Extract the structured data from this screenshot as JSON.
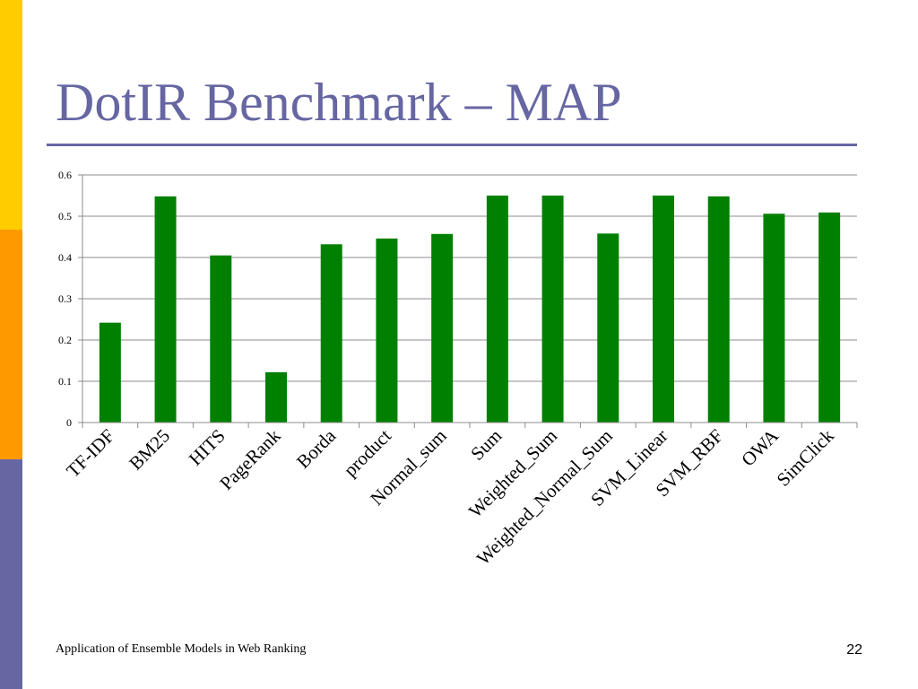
{
  "slide": {
    "title": "DotIR Benchmark – MAP",
    "footer": "Application of Ensemble Models in Web Ranking",
    "page_number": "22"
  },
  "colors": {
    "accent": "#6666A3",
    "bar": "#008000",
    "strip_top": "#FFCC00",
    "strip_mid": "#FF9900",
    "strip_bottom": "#6666A3"
  },
  "chart_data": {
    "type": "bar",
    "title": "",
    "xlabel": "",
    "ylabel": "",
    "categories": [
      "TF-IDF",
      "BM25",
      "HITS",
      "PageRank",
      "Borda",
      "product",
      "Normal_sum",
      "Sum",
      "Weighted_Sum",
      "Weighted_Normal_Sum",
      "SVM_Linear",
      "SVM_RBF",
      "OWA",
      "SimClick"
    ],
    "values": [
      0.242,
      0.548,
      0.405,
      0.122,
      0.432,
      0.446,
      0.457,
      0.55,
      0.55,
      0.458,
      0.55,
      0.548,
      0.506,
      0.509
    ],
    "ylim": [
      0,
      0.6
    ],
    "yticks": [
      "0",
      "0.1",
      "0.2",
      "0.3",
      "0.4",
      "0.5",
      "0.6"
    ],
    "grid": true,
    "legend": "none"
  }
}
